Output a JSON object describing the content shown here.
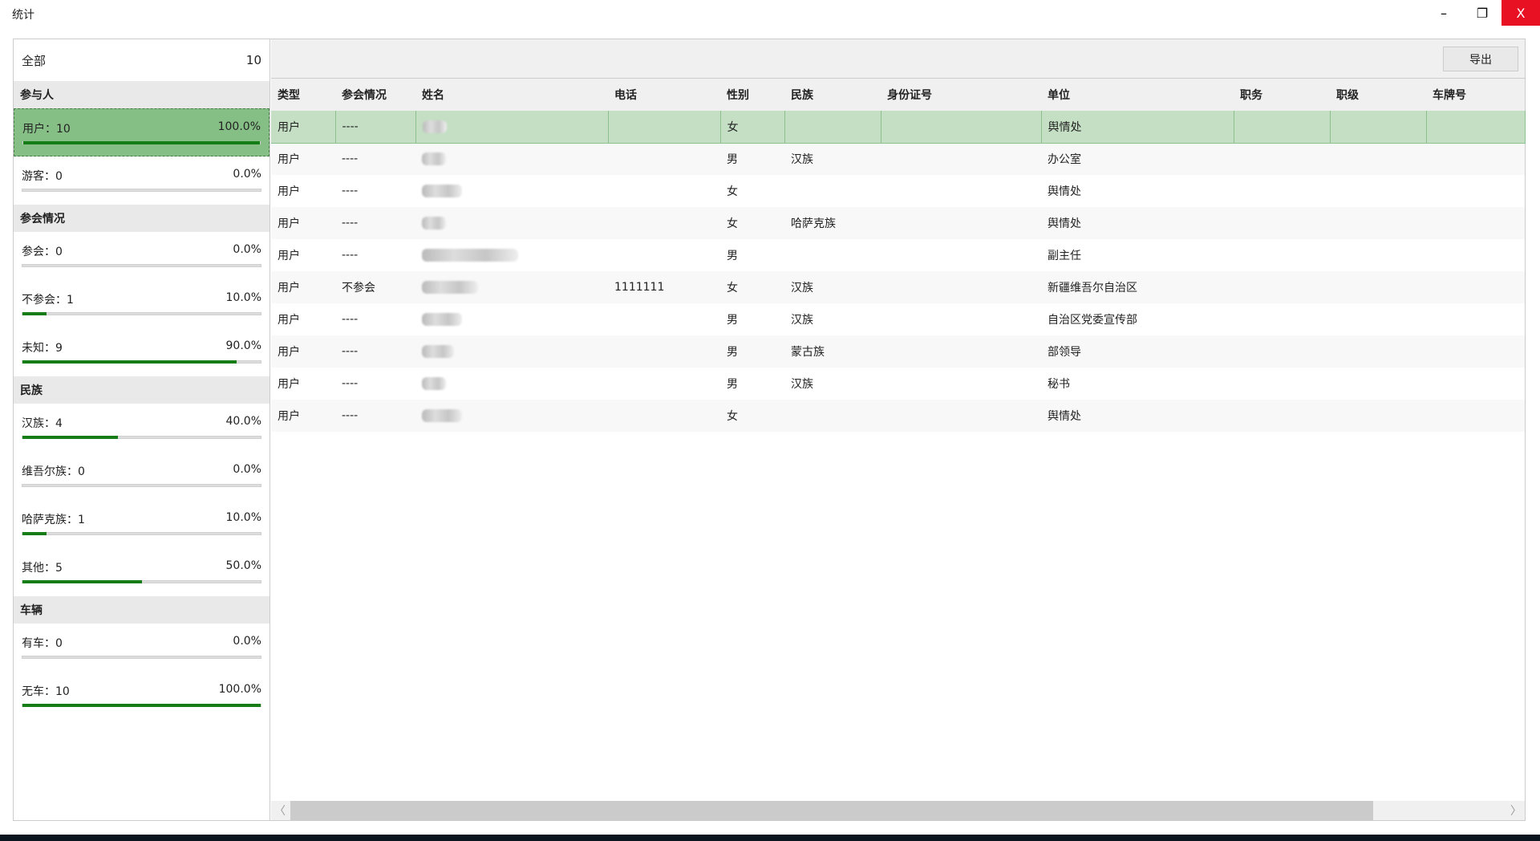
{
  "window": {
    "title": "统计",
    "minimize_icon": "minimize-icon",
    "restore_icon": "restore-icon",
    "close_icon": "close-icon",
    "minimize": "–",
    "restore": "❐",
    "close": "X"
  },
  "colors": {
    "progress": "#157d15",
    "selected_item": "#86bf86",
    "selected_row": "#c4dfc4",
    "close": "#e81123"
  },
  "sidebar": {
    "all": {
      "label": "全部",
      "count": "10"
    },
    "sections": [
      {
        "title": "参与人",
        "items": [
          {
            "label": "用户：10",
            "pct": "100.0%",
            "value": 100,
            "selected": true
          },
          {
            "label": "游客：0",
            "pct": "0.0%",
            "value": 0
          }
        ]
      },
      {
        "title": "参会情况",
        "items": [
          {
            "label": "参会：0",
            "pct": "0.0%",
            "value": 0
          },
          {
            "label": "不参会：1",
            "pct": "10.0%",
            "value": 10
          },
          {
            "label": "未知：9",
            "pct": "90.0%",
            "value": 90
          }
        ]
      },
      {
        "title": "民族",
        "items": [
          {
            "label": "汉族：4",
            "pct": "40.0%",
            "value": 40
          },
          {
            "label": "维吾尔族：0",
            "pct": "0.0%",
            "value": 0
          },
          {
            "label": "哈萨克族：1",
            "pct": "10.0%",
            "value": 10
          },
          {
            "label": "其他：5",
            "pct": "50.0%",
            "value": 50
          }
        ]
      },
      {
        "title": "车辆",
        "items": [
          {
            "label": "有车：0",
            "pct": "0.0%",
            "value": 0
          },
          {
            "label": "无车：10",
            "pct": "100.0%",
            "value": 100
          }
        ]
      }
    ]
  },
  "toolbar": {
    "export_label": "导出"
  },
  "table": {
    "columns": [
      "类型",
      "参会情况",
      "姓名",
      "电话",
      "性别",
      "民族",
      "身份证号",
      "单位",
      "职务",
      "职级",
      "车牌号"
    ],
    "rows": [
      [
        "用户",
        "----",
        "",
        "",
        "女",
        "",
        "",
        "舆情处",
        "",
        "",
        ""
      ],
      [
        "用户",
        "----",
        "",
        "",
        "男",
        "汉族",
        "",
        "办公室",
        "",
        "",
        ""
      ],
      [
        "用户",
        "----",
        "",
        "",
        "女",
        "",
        "",
        "舆情处",
        "",
        "",
        ""
      ],
      [
        "用户",
        "----",
        "",
        "",
        "女",
        "哈萨克族",
        "",
        "舆情处",
        "",
        "",
        ""
      ],
      [
        "用户",
        "----",
        "",
        "",
        "男",
        "",
        "",
        "副主任",
        "",
        "",
        ""
      ],
      [
        "用户",
        "不参会",
        "",
        "1111111",
        "女",
        "汉族",
        "",
        "新疆维吾尔自治区",
        "",
        "",
        ""
      ],
      [
        "用户",
        "----",
        "",
        "",
        "男",
        "汉族",
        "",
        "自治区党委宣传部",
        "",
        "",
        ""
      ],
      [
        "用户",
        "----",
        "",
        "",
        "男",
        "蒙古族",
        "",
        "部领导",
        "",
        "",
        ""
      ],
      [
        "用户",
        "----",
        "",
        "",
        "男",
        "汉族",
        "",
        "秘书",
        "",
        "",
        ""
      ],
      [
        "用户",
        "----",
        "",
        "",
        "女",
        "",
        "",
        "舆情处",
        "",
        "",
        ""
      ]
    ],
    "selected_row": 0
  },
  "scrollbar": {
    "left_arrow": "〈",
    "right_arrow": "〉"
  }
}
